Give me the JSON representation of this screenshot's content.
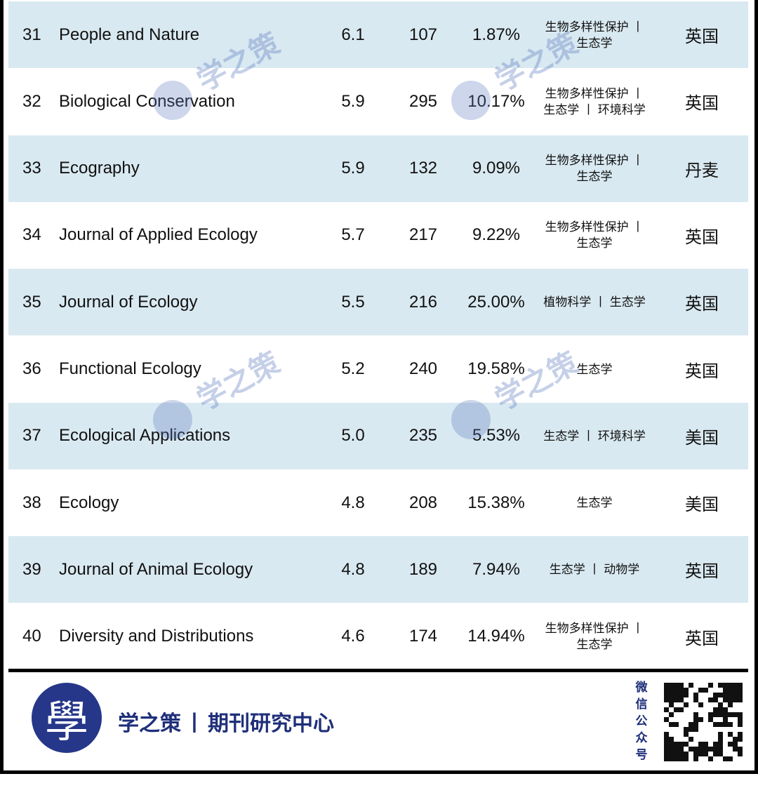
{
  "table": {
    "rows": [
      [
        "31",
        "People and Nature",
        "6.1",
        "107",
        "1.87%",
        [
          "生物多样性保护 丨",
          "生态学"
        ],
        "英国"
      ],
      [
        "32",
        "Biological Conservation",
        "5.9",
        "295",
        "10.17%",
        [
          "生物多样性保护 丨",
          "生态学 丨 环境科学"
        ],
        "英国"
      ],
      [
        "33",
        "Ecography",
        "5.9",
        "132",
        "9.09%",
        [
          "生物多样性保护 丨",
          "生态学"
        ],
        "丹麦"
      ],
      [
        "34",
        "Journal of Applied Ecology",
        "5.7",
        "217",
        "9.22%",
        [
          "生物多样性保护 丨",
          "生态学"
        ],
        "英国"
      ],
      [
        "35",
        "Journal of Ecology",
        "5.5",
        "216",
        "25.00%",
        [
          "植物科学 丨 生态学"
        ],
        "英国"
      ],
      [
        "36",
        "Functional Ecology",
        "5.2",
        "240",
        "19.58%",
        [
          "生态学"
        ],
        "英国"
      ],
      [
        "37",
        "Ecological Applications",
        "5.0",
        "235",
        "5.53%",
        [
          "生态学 丨 环境科学"
        ],
        "美国"
      ],
      [
        "38",
        "Ecology",
        "4.8",
        "208",
        "15.38%",
        [
          "生态学"
        ],
        "美国"
      ],
      [
        "39",
        "Journal of Animal Ecology",
        "4.8",
        "189",
        "7.94%",
        [
          "生态学 丨 动物学"
        ],
        "英国"
      ],
      [
        "40",
        "Diversity and Distributions",
        "4.6",
        "174",
        "14.94%",
        [
          "生物多样性保护 丨",
          "生态学"
        ],
        "英国"
      ]
    ]
  },
  "watermark": "学之策",
  "footer": {
    "logo": "學",
    "brand": "学之策",
    "separator": "丨",
    "center": "期刊研究中心",
    "wechat": [
      "微",
      "信",
      "公",
      "众",
      "号"
    ]
  }
}
